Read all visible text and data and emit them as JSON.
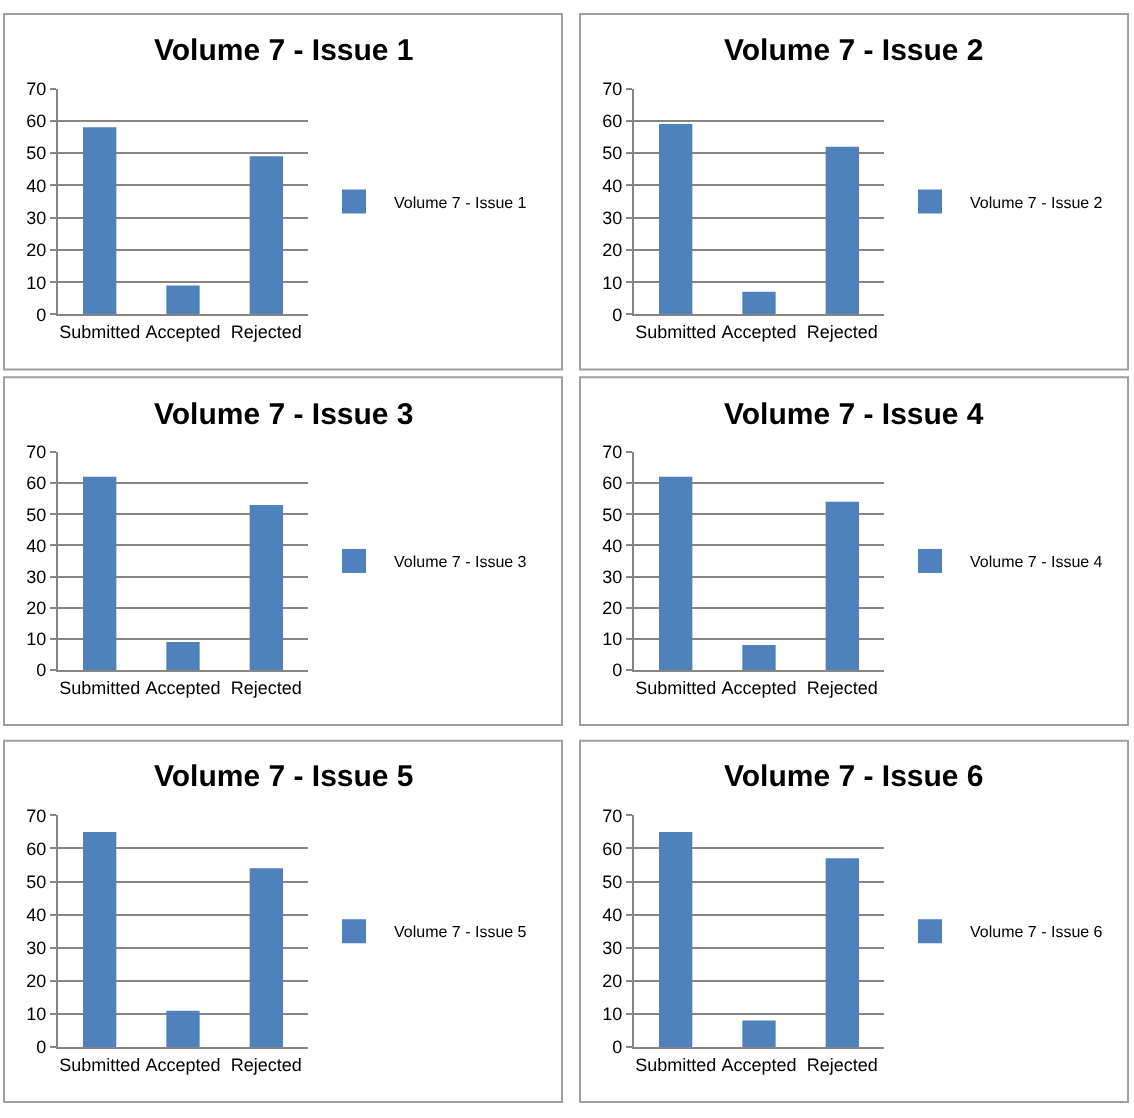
{
  "chart_data": [
    {
      "type": "bar",
      "title": "Volume 7 - Issue 1",
      "categories": [
        "Submitted",
        "Accepted",
        "Rejected"
      ],
      "series": [
        {
          "name": "Volume 7 - Issue 1",
          "color": "#4f81bd",
          "values": [
            58,
            9,
            49
          ]
        }
      ],
      "ylim": [
        0,
        70
      ],
      "yticks": [
        0,
        10,
        20,
        30,
        40,
        50,
        60,
        70
      ],
      "grid": "y",
      "legend": "right"
    },
    {
      "type": "bar",
      "title": "Volume 7 - Issue 2",
      "categories": [
        "Submitted",
        "Accepted",
        "Rejected"
      ],
      "series": [
        {
          "name": "Volume 7 - Issue 2",
          "color": "#4f81bd",
          "values": [
            59,
            7,
            52
          ]
        }
      ],
      "ylim": [
        0,
        70
      ],
      "yticks": [
        0,
        10,
        20,
        30,
        40,
        50,
        60,
        70
      ],
      "grid": "y",
      "legend": "right"
    },
    {
      "type": "bar",
      "title": "Volume 7 - Issue 3",
      "categories": [
        "Submitted",
        "Accepted",
        "Rejected"
      ],
      "series": [
        {
          "name": "Volume 7 - Issue 3",
          "color": "#4f81bd",
          "values": [
            62,
            9,
            53
          ]
        }
      ],
      "ylim": [
        0,
        70
      ],
      "yticks": [
        0,
        10,
        20,
        30,
        40,
        50,
        60,
        70
      ],
      "grid": "y",
      "legend": "right"
    },
    {
      "type": "bar",
      "title": "Volume 7 - Issue 4",
      "categories": [
        "Submitted",
        "Accepted",
        "Rejected"
      ],
      "series": [
        {
          "name": "Volume 7 - Issue 4",
          "color": "#4f81bd",
          "values": [
            62,
            8,
            54
          ]
        }
      ],
      "ylim": [
        0,
        70
      ],
      "yticks": [
        0,
        10,
        20,
        30,
        40,
        50,
        60,
        70
      ],
      "grid": "y",
      "legend": "right"
    },
    {
      "type": "bar",
      "title": "Volume 7 - Issue 5",
      "categories": [
        "Submitted",
        "Accepted",
        "Rejected"
      ],
      "series": [
        {
          "name": "Volume 7 - Issue 5",
          "color": "#4f81bd",
          "values": [
            65,
            11,
            54
          ]
        }
      ],
      "ylim": [
        0,
        70
      ],
      "yticks": [
        0,
        10,
        20,
        30,
        40,
        50,
        60,
        70
      ],
      "grid": "y",
      "legend": "right"
    },
    {
      "type": "bar",
      "title": "Volume 7 - Issue 6",
      "categories": [
        "Submitted",
        "Accepted",
        "Rejected"
      ],
      "series": [
        {
          "name": "Volume 7 - Issue 6",
          "color": "#4f81bd",
          "values": [
            65,
            8,
            57
          ]
        }
      ],
      "ylim": [
        0,
        70
      ],
      "yticks": [
        0,
        10,
        20,
        30,
        40,
        50,
        60,
        70
      ],
      "grid": "y",
      "legend": "right"
    }
  ]
}
